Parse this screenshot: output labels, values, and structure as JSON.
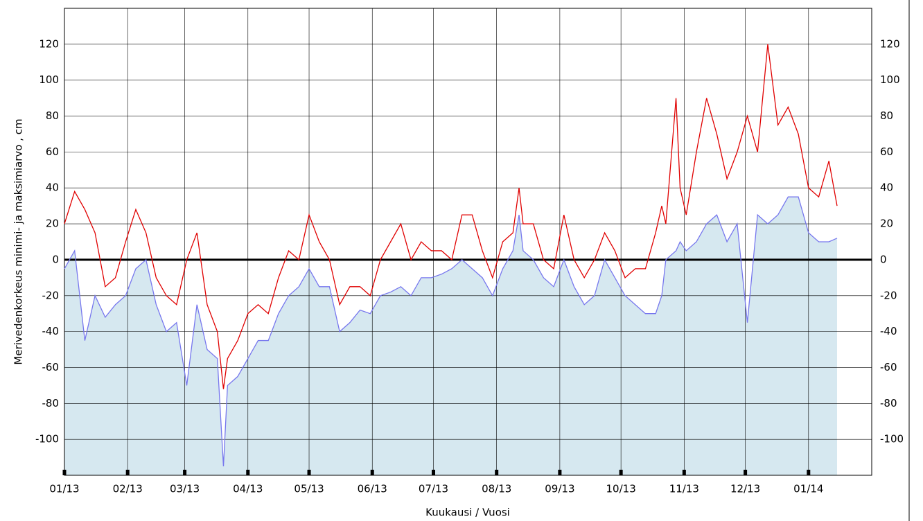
{
  "chart_data": {
    "type": "line",
    "y_label": "Merivedenkorkeus minimi- ja maksimiarvo , cm",
    "x_label": "Kuukausi / Vuosi",
    "x": [
      0,
      5,
      10,
      15,
      20,
      25,
      30,
      35,
      40,
      45,
      50,
      55,
      60,
      65,
      70,
      75,
      78,
      80,
      85,
      90,
      95,
      100,
      105,
      110,
      115,
      120,
      125,
      130,
      135,
      140,
      145,
      150,
      155,
      160,
      165,
      170,
      175,
      180,
      185,
      190,
      195,
      200,
      205,
      210,
      215,
      220,
      223,
      225,
      230,
      235,
      240,
      245,
      250,
      255,
      260,
      265,
      270,
      275,
      280,
      285,
      290,
      293,
      295,
      300,
      302,
      305,
      310,
      315,
      320,
      325,
      330,
      335,
      340,
      345,
      350,
      355,
      360,
      365,
      370,
      375,
      379
    ],
    "series": [
      {
        "color": "#e00000",
        "values": [
          20,
          38,
          28,
          15,
          -15,
          -10,
          10,
          28,
          15,
          -10,
          -20,
          -25,
          0,
          15,
          -25,
          -40,
          -72,
          -55,
          -45,
          -30,
          -25,
          -30,
          -10,
          5,
          0,
          25,
          10,
          0,
          -25,
          -15,
          -15,
          -20,
          0,
          10,
          20,
          0,
          10,
          5,
          5,
          0,
          25,
          25,
          5,
          -10,
          10,
          15,
          40,
          20,
          20,
          0,
          -5,
          25,
          0,
          -10,
          0,
          15,
          5,
          -10,
          -5,
          -5,
          15,
          30,
          20,
          90,
          40,
          25,
          60,
          90,
          70,
          45,
          60,
          80,
          60,
          120,
          75,
          85,
          70,
          40,
          35,
          55,
          30
        ]
      },
      {
        "color": "#7777ee",
        "fill": "#d6e8f0",
        "values": [
          -5,
          5,
          -45,
          -20,
          -32,
          -25,
          -20,
          -5,
          0,
          -25,
          -40,
          -35,
          -70,
          -25,
          -50,
          -55,
          -115,
          -70,
          -65,
          -55,
          -45,
          -45,
          -30,
          -20,
          -15,
          -5,
          -15,
          -15,
          -40,
          -35,
          -28,
          -30,
          -20,
          -18,
          -15,
          -20,
          -10,
          -10,
          -8,
          -5,
          0,
          -5,
          -10,
          -20,
          -5,
          5,
          25,
          5,
          0,
          -10,
          -15,
          0,
          -15,
          -25,
          -20,
          0,
          -10,
          -20,
          -25,
          -30,
          -30,
          -20,
          0,
          5,
          10,
          5,
          10,
          20,
          25,
          10,
          20,
          -35,
          25,
          20,
          25,
          35,
          35,
          15,
          10,
          10,
          12
        ]
      }
    ],
    "xlim": [
      0,
      396
    ],
    "xticks": [
      {
        "value": 0,
        "label": "01/13"
      },
      {
        "value": 31,
        "label": "02/13"
      },
      {
        "value": 59,
        "label": "03/13"
      },
      {
        "value": 90,
        "label": "04/13"
      },
      {
        "value": 120,
        "label": "05/13"
      },
      {
        "value": 151,
        "label": "06/13"
      },
      {
        "value": 181,
        "label": "07/13"
      },
      {
        "value": 212,
        "label": "08/13"
      },
      {
        "value": 243,
        "label": "09/13"
      },
      {
        "value": 273,
        "label": "10/13"
      },
      {
        "value": 304,
        "label": "11/13"
      },
      {
        "value": 334,
        "label": "12/13"
      },
      {
        "value": 365,
        "label": "01/14"
      }
    ],
    "ylim": [
      -120,
      140
    ],
    "yticks": [
      -100,
      -80,
      -60,
      -40,
      -20,
      0,
      20,
      40,
      60,
      80,
      100,
      120
    ],
    "grid": true
  }
}
